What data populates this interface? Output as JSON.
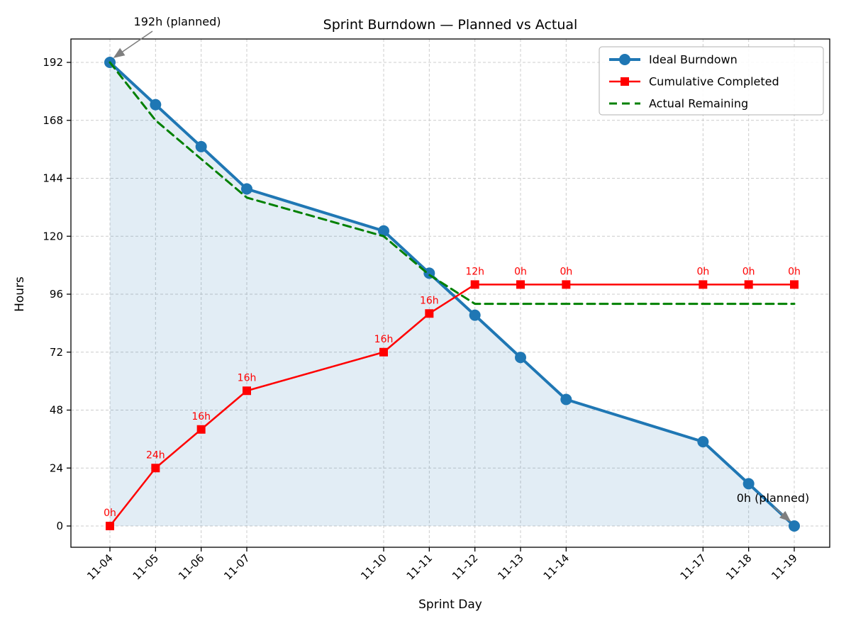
{
  "chart_data": {
    "type": "line",
    "title": "Sprint Burndown — Planned vs Actual",
    "xlabel": "Sprint Day",
    "ylabel": "Hours",
    "x_labels": [
      "11-04",
      "11-05",
      "11-06",
      "11-07",
      "11-10",
      "11-11",
      "11-12",
      "11-13",
      "11-14",
      "11-17",
      "11-18",
      "11-19"
    ],
    "x_days": [
      4,
      5,
      6,
      7,
      10,
      11,
      12,
      13,
      14,
      17,
      18,
      19
    ],
    "y_ticks": [
      0,
      24,
      48,
      72,
      96,
      120,
      144,
      168,
      192
    ],
    "ylim": [
      0,
      192
    ],
    "grid": true,
    "legend_position": "upper right",
    "colors": {
      "ideal": "#1f77b4",
      "completed": "#ff0000",
      "remaining": "#008000",
      "grid": "#cccccc",
      "annotation_arrow": "#7f7f7f"
    },
    "series": [
      {
        "name": "Ideal Burndown",
        "color": "#1f77b4",
        "style": "solid",
        "marker": "circle",
        "fill": true,
        "values": [
          192,
          174.5,
          157.1,
          139.6,
          122.2,
          104.7,
          87.3,
          69.8,
          52.4,
          34.9,
          17.5,
          0
        ]
      },
      {
        "name": "Cumulative Completed",
        "color": "#ff0000",
        "style": "solid",
        "marker": "square",
        "fill": false,
        "values": [
          0,
          24,
          40,
          56,
          72,
          88,
          100,
          100,
          100,
          100,
          100,
          100
        ],
        "point_labels": [
          "0h",
          "24h",
          "16h",
          "16h",
          "16h",
          "16h",
          "12h",
          "0h",
          "0h",
          "0h",
          "0h",
          "0h"
        ]
      },
      {
        "name": "Actual Remaining",
        "color": "#008000",
        "style": "dashed",
        "marker": "none",
        "fill": false,
        "values": [
          192,
          168,
          152,
          136,
          120,
          104,
          92,
          92,
          92,
          92,
          92,
          92
        ]
      }
    ],
    "annotations": [
      {
        "text": "192h (planned)",
        "target_day": 4,
        "target_value": 192
      },
      {
        "text": "0h (planned)",
        "target_day": 19,
        "target_value": 0
      }
    ]
  }
}
